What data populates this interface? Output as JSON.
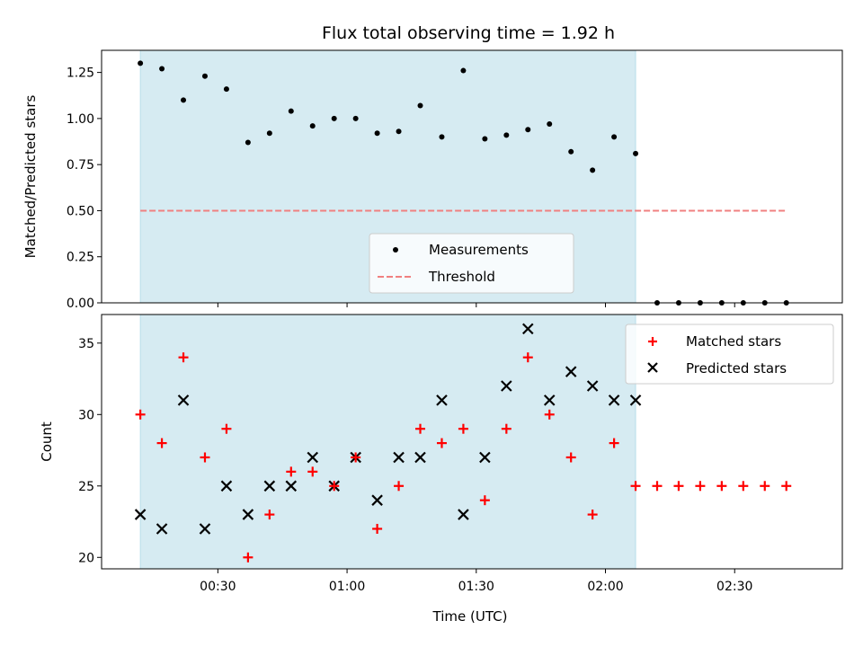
{
  "chart_data": [
    {
      "type": "scatter",
      "title": "Flux total observing time = 1.92 h",
      "ylabel": "Matched/Predicted stars",
      "xlabel": "",
      "x_axis": "time (UTC)",
      "xlim": [
        "00:03",
        "02:55"
      ],
      "ylim": [
        0,
        1.37
      ],
      "yticks": [
        "0.00",
        "0.25",
        "0.50",
        "0.75",
        "1.00",
        "1.25"
      ],
      "shaded_interval": [
        "00:12",
        "02:07"
      ],
      "shade_color": "#add8e6",
      "times": [
        "00:12",
        "00:17",
        "00:22",
        "00:27",
        "00:32",
        "00:37",
        "00:42",
        "00:47",
        "00:52",
        "00:57",
        "01:02",
        "01:07",
        "01:12",
        "01:17",
        "01:22",
        "01:27",
        "01:32",
        "01:37",
        "01:42",
        "01:47",
        "01:52",
        "01:57",
        "02:02",
        "02:07",
        "02:12",
        "02:17",
        "02:22",
        "02:27",
        "02:32",
        "02:37",
        "02:42"
      ],
      "series": [
        {
          "name": "Measurements",
          "marker": "dot",
          "color": "#000000",
          "values": [
            1.3,
            1.27,
            1.1,
            1.23,
            1.16,
            0.87,
            0.92,
            1.04,
            0.96,
            1.0,
            1.0,
            0.92,
            0.93,
            1.07,
            0.9,
            1.26,
            0.89,
            0.91,
            0.94,
            0.97,
            0.82,
            0.72,
            0.9,
            0.81,
            0,
            0,
            0,
            0,
            0,
            0,
            0
          ]
        },
        {
          "name": "Threshold",
          "marker": "dashed-line",
          "color": "#f08080",
          "value": 0.5
        }
      ],
      "legend": {
        "placement": "bottom-center",
        "entries": [
          "Measurements",
          "Threshold"
        ]
      }
    },
    {
      "type": "scatter",
      "title": "",
      "xlabel": "Time (UTC)",
      "ylabel": "Count",
      "xlim": [
        "00:03",
        "02:55"
      ],
      "ylim": [
        19.2,
        37.0
      ],
      "yticks": [
        "20",
        "25",
        "30",
        "35"
      ],
      "xticks": [
        "00:30",
        "01:00",
        "01:30",
        "02:00",
        "02:30"
      ],
      "shaded_interval": [
        "00:12",
        "02:07"
      ],
      "shade_color": "#add8e6",
      "times": [
        "00:12",
        "00:17",
        "00:22",
        "00:27",
        "00:32",
        "00:37",
        "00:42",
        "00:47",
        "00:52",
        "00:57",
        "01:02",
        "01:07",
        "01:12",
        "01:17",
        "01:22",
        "01:27",
        "01:32",
        "01:37",
        "01:42",
        "01:47",
        "01:52",
        "01:57",
        "02:02",
        "02:07",
        "02:12",
        "02:17",
        "02:22",
        "02:27",
        "02:32",
        "02:37",
        "02:42"
      ],
      "series": [
        {
          "name": "Matched stars",
          "marker": "plus",
          "color": "#ff0000",
          "values": [
            30,
            28,
            34,
            27,
            29,
            20,
            23,
            26,
            26,
            25,
            27,
            22,
            25,
            29,
            28,
            29,
            24,
            29,
            34,
            30,
            27,
            23,
            28,
            25,
            25,
            25,
            25,
            25,
            25,
            25,
            25
          ]
        },
        {
          "name": "Predicted stars",
          "marker": "x",
          "color": "#000000",
          "values": [
            23,
            22,
            31,
            22,
            25,
            23,
            25,
            25,
            27,
            25,
            27,
            24,
            27,
            27,
            31,
            23,
            27,
            32,
            36,
            31,
            33,
            32,
            31,
            31
          ]
        }
      ],
      "legend": {
        "placement": "top-right",
        "entries": [
          "Matched stars",
          "Predicted stars"
        ]
      }
    }
  ]
}
